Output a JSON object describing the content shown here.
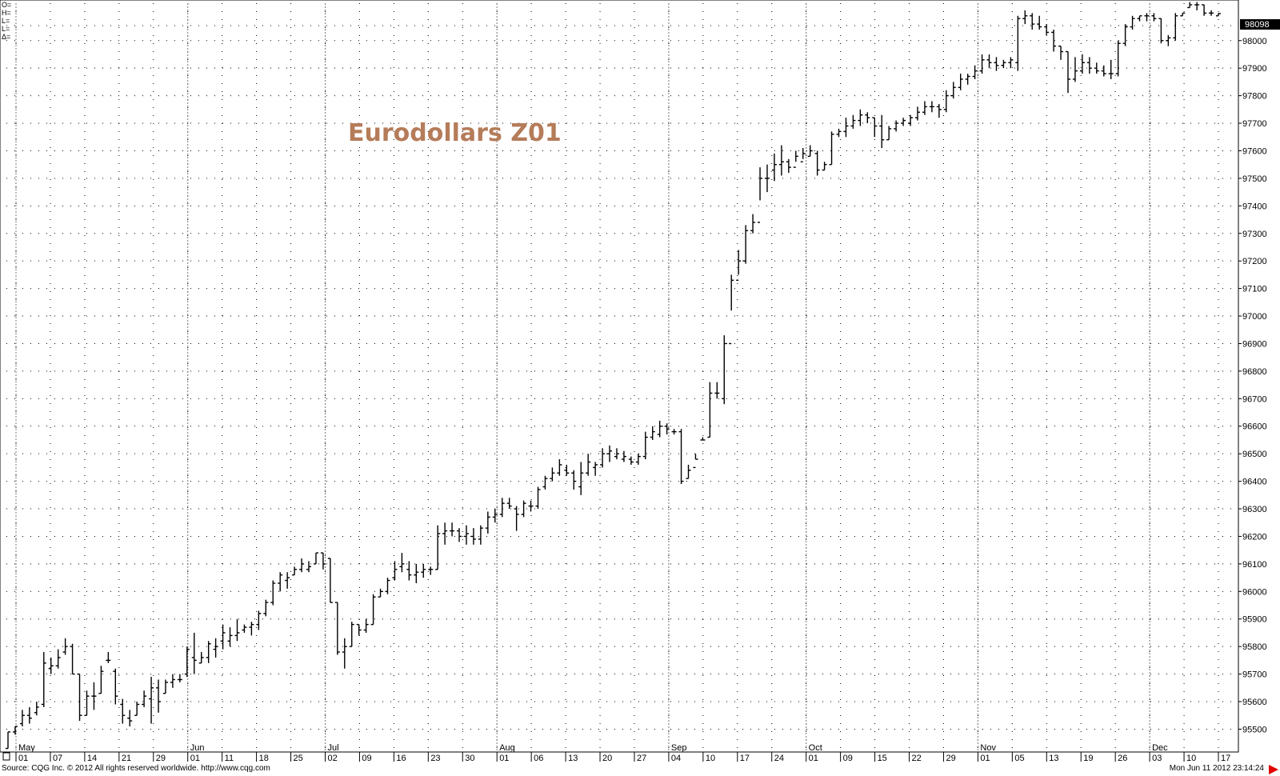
{
  "chart_data": {
    "type": "ohlc",
    "title": "Eurodollars Z01",
    "ohlc_labels": [
      "O=",
      "H=",
      "L=",
      "L=",
      "Δ="
    ],
    "last_price": "98098",
    "y_ticks": [
      "95500",
      "95600",
      "95700",
      "95800",
      "95900",
      "96000",
      "96100",
      "96200",
      "96300",
      "96400",
      "96500",
      "96600",
      "96700",
      "96800",
      "96900",
      "97000",
      "97100",
      "97200",
      "97300",
      "97400",
      "97500",
      "97600",
      "97700",
      "97800",
      "97900",
      "98000"
    ],
    "ylim": [
      95420,
      98130
    ],
    "months": [
      {
        "label": "May",
        "days": [
          "01",
          "07",
          "14",
          "21",
          "29"
        ]
      },
      {
        "label": "Jun",
        "days": [
          "01",
          "11",
          "18",
          "25"
        ]
      },
      {
        "label": "Jul",
        "days": [
          "02",
          "09",
          "16",
          "23",
          "30"
        ]
      },
      {
        "label": "Aug",
        "days": [
          "01",
          "06",
          "13",
          "20",
          "27"
        ]
      },
      {
        "label": "Sep",
        "days": [
          "04",
          "10",
          "17",
          "24"
        ]
      },
      {
        "label": "Oct",
        "days": [
          "01",
          "09",
          "15",
          "22",
          "29"
        ]
      },
      {
        "label": "Nov",
        "days": [
          "01",
          "05",
          "13",
          "19",
          "26"
        ]
      },
      {
        "label": "Dec",
        "days": [
          "03",
          "10",
          "17"
        ]
      }
    ],
    "bars": [
      [
        95430,
        95490,
        95430,
        95490
      ],
      [
        95490,
        95510,
        95480,
        95510
      ],
      [
        95520,
        95570,
        95510,
        95550
      ],
      [
        95550,
        95580,
        95520,
        95540
      ],
      [
        95560,
        95600,
        95550,
        95580
      ],
      [
        95590,
        95780,
        95580,
        95740
      ],
      [
        95720,
        95760,
        95700,
        95730
      ],
      [
        95730,
        95790,
        95720,
        95760
      ],
      [
        95780,
        95830,
        95770,
        95800
      ],
      [
        95800,
        95810,
        95700,
        95700
      ],
      [
        95700,
        95700,
        95530,
        95550
      ],
      [
        95550,
        95640,
        95550,
        95620
      ],
      [
        95620,
        95670,
        95570,
        95620
      ],
      [
        95630,
        95730,
        95630,
        95710
      ],
      [
        95750,
        95780,
        95740,
        95750
      ],
      [
        95710,
        95720,
        95590,
        95620
      ],
      [
        95590,
        95610,
        95520,
        95550
      ],
      [
        95540,
        95570,
        95510,
        95530
      ],
      [
        95550,
        95600,
        95550,
        95590
      ],
      [
        95590,
        95640,
        95580,
        95620
      ],
      [
        95610,
        95690,
        95520,
        95650
      ],
      [
        95650,
        95680,
        95560,
        95600
      ],
      [
        95630,
        95680,
        95630,
        95670
      ],
      [
        95670,
        95700,
        95650,
        95680
      ],
      [
        95680,
        95700,
        95670,
        95680
      ],
      [
        95700,
        95800,
        95690,
        95790
      ],
      [
        95760,
        95850,
        95700,
        95750
      ],
      [
        95740,
        95780,
        95740,
        95760
      ],
      [
        95760,
        95820,
        95740,
        95810
      ],
      [
        95790,
        95830,
        95760,
        95800
      ],
      [
        95820,
        95880,
        95790,
        95850
      ],
      [
        95820,
        95870,
        95800,
        95840
      ],
      [
        95840,
        95900,
        95820,
        95850
      ],
      [
        95860,
        95880,
        95850,
        95870
      ],
      [
        95870,
        95890,
        95840,
        95880
      ],
      [
        95880,
        95930,
        95860,
        95920
      ],
      [
        95920,
        95970,
        95910,
        95960
      ],
      [
        95960,
        96040,
        95950,
        96030
      ],
      [
        96030,
        96070,
        96000,
        96060
      ],
      [
        96040,
        96070,
        96010,
        96050
      ],
      [
        96060,
        96090,
        96060,
        96080
      ],
      [
        96080,
        96120,
        96070,
        96100
      ],
      [
        96080,
        96110,
        96070,
        96090
      ],
      [
        96100,
        96140,
        96100,
        96140
      ],
      [
        96140,
        96140,
        96080,
        96100
      ],
      [
        96120,
        96120,
        95960,
        95960
      ],
      [
        95960,
        95960,
        95770,
        95780
      ],
      [
        95780,
        95830,
        95720,
        95800
      ],
      [
        95800,
        95890,
        95800,
        95880
      ],
      [
        95880,
        95880,
        95840,
        95860
      ],
      [
        95860,
        95900,
        95850,
        95880
      ],
      [
        95880,
        95990,
        95880,
        95980
      ],
      [
        95980,
        96010,
        95980,
        96000
      ],
      [
        96000,
        96050,
        95990,
        96040
      ],
      [
        96050,
        96110,
        96040,
        96080
      ],
      [
        96090,
        96140,
        96070,
        96100
      ],
      [
        96080,
        96110,
        96040,
        96060
      ],
      [
        96060,
        96100,
        96030,
        96070
      ],
      [
        96070,
        96100,
        96050,
        96080
      ],
      [
        96080,
        96090,
        96060,
        96080
      ],
      [
        96080,
        96240,
        96080,
        96210
      ],
      [
        96210,
        96250,
        96170,
        96220
      ],
      [
        96220,
        96250,
        96200,
        96220
      ],
      [
        96220,
        96230,
        96180,
        96200
      ],
      [
        96200,
        96240,
        96170,
        96210
      ],
      [
        96200,
        96230,
        96170,
        96190
      ],
      [
        96190,
        96240,
        96170,
        96230
      ],
      [
        96230,
        96290,
        96210,
        96270
      ],
      [
        96270,
        96300,
        96250,
        96280
      ],
      [
        96280,
        96340,
        96270,
        96320
      ],
      [
        96320,
        96340,
        96300,
        96310
      ],
      [
        96300,
        96310,
        96220,
        96280
      ],
      [
        96280,
        96330,
        96270,
        96320
      ],
      [
        96310,
        96330,
        96290,
        96310
      ],
      [
        96310,
        96380,
        96300,
        96370
      ],
      [
        96380,
        96420,
        96370,
        96410
      ],
      [
        96410,
        96450,
        96400,
        96430
      ],
      [
        96430,
        96480,
        96420,
        96460
      ],
      [
        96440,
        96460,
        96420,
        96430
      ],
      [
        96430,
        96440,
        96370,
        96400
      ],
      [
        96380,
        96470,
        96350,
        96430
      ],
      [
        96430,
        96500,
        96420,
        96470
      ],
      [
        96450,
        96470,
        96420,
        96460
      ],
      [
        96460,
        96520,
        96450,
        96500
      ],
      [
        96500,
        96530,
        96470,
        96510
      ],
      [
        96490,
        96520,
        96480,
        96500
      ],
      [
        96480,
        96510,
        96470,
        96490
      ],
      [
        96480,
        96490,
        96460,
        96470
      ],
      [
        96470,
        96500,
        96460,
        96490
      ],
      [
        96490,
        96580,
        96480,
        96560
      ],
      [
        96560,
        96600,
        96550,
        96580
      ],
      [
        96570,
        96620,
        96560,
        96600
      ],
      [
        96600,
        96610,
        96570,
        96590
      ],
      [
        96580,
        96590,
        96570,
        96580
      ],
      [
        96580,
        96590,
        96390,
        96400
      ],
      [
        96410,
        96460,
        96410,
        96440
      ],
      [
        96450,
        96500,
        96480,
        96480
      ],
      [
        96550,
        96560,
        96550,
        96550
      ],
      [
        96560,
        96760,
        96560,
        96720
      ],
      [
        96720,
        96760,
        96700,
        96720
      ],
      [
        96700,
        96930,
        96680,
        96900
      ],
      [
        96900,
        97150,
        97020,
        97130
      ],
      [
        97130,
        97240,
        97150,
        97200
      ],
      [
        97200,
        97330,
        97190,
        97310
      ],
      [
        97310,
        97370,
        97300,
        97340
      ],
      [
        97340,
        97540,
        97420,
        97500
      ],
      [
        97500,
        97550,
        97450,
        97500
      ],
      [
        97530,
        97590,
        97490,
        97550
      ],
      [
        97550,
        97620,
        97510,
        97560
      ],
      [
        97560,
        97570,
        97520,
        97540
      ],
      [
        97540,
        97600,
        97560,
        97580
      ],
      [
        97560,
        97610,
        97570,
        97590
      ],
      [
        97580,
        97620,
        97580,
        97600
      ],
      [
        97590,
        97600,
        97510,
        97530
      ],
      [
        97530,
        97560,
        97530,
        97550
      ],
      [
        97550,
        97670,
        97550,
        97660
      ],
      [
        97660,
        97680,
        97650,
        97670
      ],
      [
        97670,
        97720,
        97650,
        97690
      ],
      [
        97690,
        97730,
        97680,
        97710
      ],
      [
        97710,
        97750,
        97690,
        97730
      ],
      [
        97730,
        97740,
        97700,
        97720
      ],
      [
        97720,
        97720,
        97650,
        97690
      ],
      [
        97690,
        97730,
        97610,
        97640
      ],
      [
        97640,
        97690,
        97640,
        97680
      ],
      [
        97680,
        97710,
        97670,
        97700
      ],
      [
        97700,
        97720,
        97690,
        97710
      ],
      [
        97700,
        97730,
        97690,
        97720
      ],
      [
        97720,
        97760,
        97710,
        97740
      ],
      [
        97740,
        97780,
        97730,
        97760
      ],
      [
        97760,
        97780,
        97740,
        97760
      ],
      [
        97760,
        97770,
        97720,
        97750
      ],
      [
        97750,
        97820,
        97740,
        97800
      ],
      [
        97800,
        97850,
        97790,
        97830
      ],
      [
        97830,
        97880,
        97820,
        97860
      ],
      [
        97860,
        97880,
        97840,
        97870
      ],
      [
        97870,
        97910,
        97860,
        97890
      ],
      [
        97890,
        97950,
        97880,
        97930
      ],
      [
        97930,
        97950,
        97900,
        97920
      ],
      [
        97920,
        97940,
        97890,
        97910
      ],
      [
        97910,
        97930,
        97900,
        97920
      ],
      [
        97920,
        97940,
        97900,
        97930
      ],
      [
        97920,
        98090,
        97890,
        98080
      ],
      [
        98080,
        98110,
        98060,
        98090
      ],
      [
        98090,
        98100,
        98040,
        98060
      ],
      [
        98060,
        98090,
        98040,
        98050
      ],
      [
        98050,
        98060,
        98020,
        98030
      ],
      [
        98030,
        98040,
        97960,
        97980
      ],
      [
        97980,
        97980,
        97930,
        97960
      ],
      [
        97960,
        97960,
        97810,
        97860
      ],
      [
        97860,
        97940,
        97850,
        97890
      ],
      [
        97890,
        97950,
        97880,
        97920
      ],
      [
        97920,
        97940,
        97880,
        97900
      ],
      [
        97900,
        97920,
        97880,
        97890
      ],
      [
        97890,
        97910,
        97870,
        97880
      ],
      [
        97880,
        97930,
        97860,
        97880
      ],
      [
        97880,
        98000,
        97870,
        97990
      ],
      [
        97990,
        98060,
        97980,
        98050
      ],
      [
        98050,
        98090,
        98040,
        98080
      ],
      [
        98080,
        98090,
        98070,
        98090
      ],
      [
        98090,
        98100,
        98070,
        98090
      ],
      [
        98090,
        98100,
        98070,
        98080
      ],
      [
        98080,
        98080,
        97990,
        98000
      ],
      [
        98000,
        98020,
        97980,
        98010
      ],
      [
        98010,
        98100,
        98000,
        98090
      ],
      [
        98090,
        98100,
        98090,
        98100
      ],
      [
        98120,
        98140,
        98120,
        98130
      ],
      [
        98130,
        98140,
        98110,
        98130
      ],
      [
        98130,
        98130,
        98090,
        98100
      ],
      [
        98100,
        98110,
        98090,
        98100
      ],
      [
        98090,
        98100,
        98090,
        98098
      ]
    ]
  },
  "footer": {
    "source": "Source: CQG Inc. © 2012 All rights reserved worldwide. http://www.cqg.com",
    "timestamp": "Mon Jun 11 2012 23:14:24"
  },
  "colors": {
    "title": "#b57c5a",
    "bars": "#000000",
    "last_price_bg": "#000000",
    "arrow": "#e00000"
  }
}
